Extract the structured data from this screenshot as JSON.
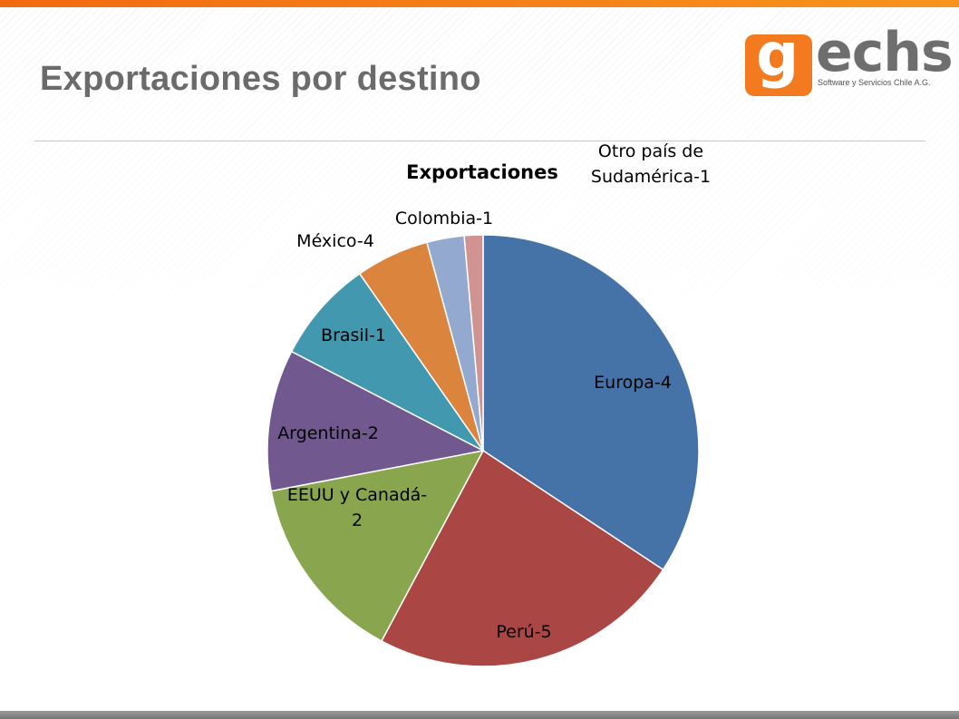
{
  "slide": {
    "title": "Exportaciones por destino"
  },
  "logo": {
    "mark": "g",
    "name_rest": "echs",
    "tagline": "Software y Servicios Chile A.G."
  },
  "colors": {
    "accent": "#f47a20",
    "title_gray": "#6b6b6b"
  },
  "chart_data": {
    "type": "pie",
    "title": "Exportaciones",
    "categories": [
      "Europa",
      "Perú",
      "EEUU y Canadá",
      "Argentina",
      "Brasil",
      "México",
      "Colombia",
      "Otro país de Sudamérica"
    ],
    "values": [
      4,
      5,
      2,
      2,
      1,
      4,
      1,
      1
    ],
    "slice_shares": [
      0.343,
      0.235,
      0.142,
      0.106,
      0.077,
      0.055,
      0.028,
      0.014
    ],
    "labels": [
      "Europa-4",
      "Perú-5",
      "EEUU y Canadá-\n2",
      "Argentina-2",
      "Brasil-1",
      "México-4",
      "Colombia-1",
      "Otro país de\nSudamérica-1"
    ],
    "colors": [
      "#4572a7",
      "#aa4643",
      "#89a54e",
      "#71588f",
      "#4198af",
      "#db843d",
      "#93a9cf",
      "#d19392"
    ],
    "legend": "none"
  }
}
